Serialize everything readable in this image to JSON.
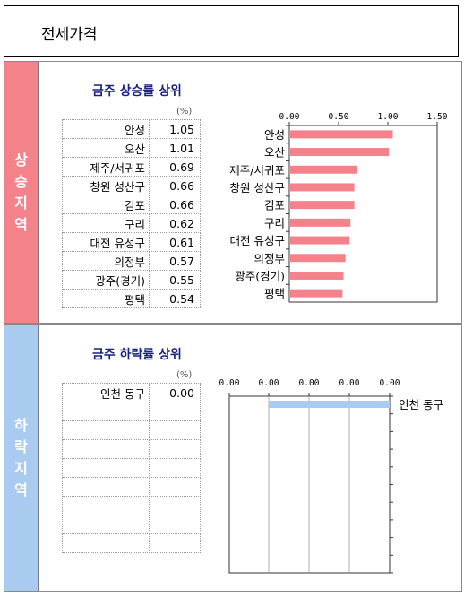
{
  "page": {
    "title": "전세가격"
  },
  "rise": {
    "side_label": "상승지역",
    "heading": "금주 상승률 상위",
    "unit": "(%)",
    "rows": [
      {
        "name": "안성",
        "value": "1.05"
      },
      {
        "name": "오산",
        "value": "1.01"
      },
      {
        "name": "제주/서귀포",
        "value": "0.69"
      },
      {
        "name": "창원 성산구",
        "value": "0.66"
      },
      {
        "name": "김포",
        "value": "0.66"
      },
      {
        "name": "구리",
        "value": "0.62"
      },
      {
        "name": "대전 유성구",
        "value": "0.61"
      },
      {
        "name": "의정부",
        "value": "0.57"
      },
      {
        "name": "광주(경기)",
        "value": "0.55"
      },
      {
        "name": "평택",
        "value": "0.54"
      }
    ]
  },
  "fall": {
    "side_label": "하락지역",
    "heading": "금주 하락률 상위",
    "unit": "(%)",
    "rows": [
      {
        "name": "인천 동구",
        "value": "0.00"
      }
    ]
  },
  "chart_data": [
    {
      "type": "bar",
      "orientation": "horizontal",
      "categories": [
        "안성",
        "오산",
        "제주/서귀포",
        "창원 성산구",
        "김포",
        "구리",
        "대전 유성구",
        "의정부",
        "광주(경기)",
        "평택"
      ],
      "values": [
        1.05,
        1.01,
        0.69,
        0.66,
        0.66,
        0.62,
        0.61,
        0.57,
        0.55,
        0.54
      ],
      "ticks": [
        "0.00",
        "0.50",
        "1.00",
        "1.50"
      ],
      "xlim": [
        0,
        1.5
      ],
      "color": "#f4828a",
      "grid": false,
      "xaxis_position": "top"
    },
    {
      "type": "bar",
      "orientation": "horizontal",
      "categories": [
        "인천 동구"
      ],
      "values": [
        0.0
      ],
      "ticks": [
        "0.00",
        "0.00",
        "0.00",
        "0.00",
        "0.00"
      ],
      "xlim": [
        -0.004,
        0
      ],
      "color": "#aacbf0",
      "grid": true,
      "xaxis_position": "top",
      "category_axis": "right"
    }
  ]
}
